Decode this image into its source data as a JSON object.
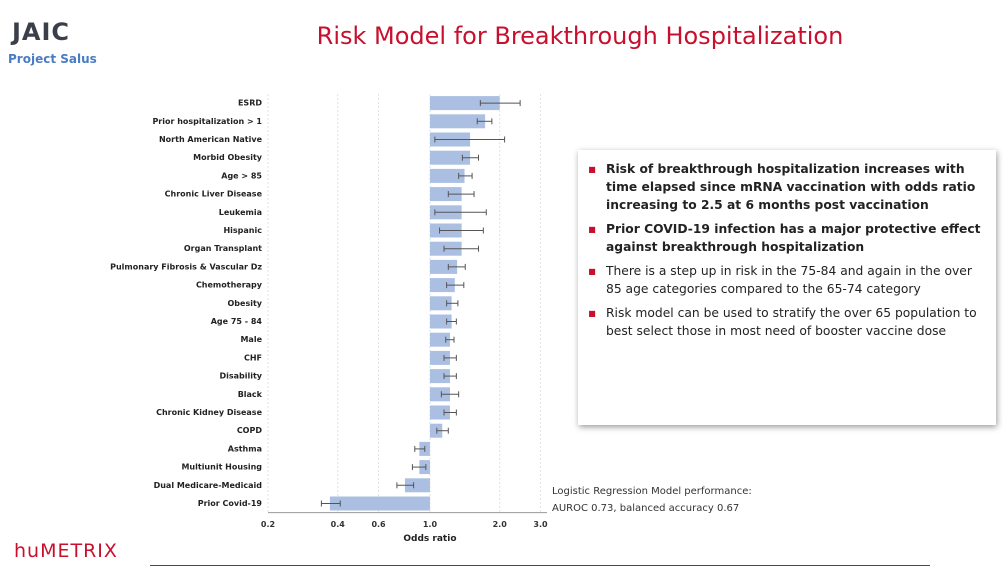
{
  "header": {
    "logo": "JAIC",
    "project": "Project Salus",
    "title": "Risk Model for Breakthrough Hospitalization"
  },
  "chart_data": {
    "type": "bar",
    "orientation": "horizontal",
    "log_scale": true,
    "grid": true,
    "color": "#aabfe2",
    "error_color": "#555555",
    "xlabel": "Odds ratio",
    "categories": [
      "ESRD",
      "Prior hospitalization > 1",
      "North American Native",
      "Morbid Obesity",
      "Age > 85",
      "Chronic Liver Disease",
      "Leukemia",
      "Hispanic",
      "Organ Transplant",
      "Pulmonary Fibrosis & Vascular Dz",
      "Chemotherapy",
      "Obesity",
      "Age 75 - 84",
      "Male",
      "CHF",
      "Disability",
      "Black",
      "Chronic Kidney Disease",
      "COPD",
      "Asthma",
      "Multiunit Housing",
      "Dual Medicare-Medicaid",
      "Prior Covid-19"
    ],
    "values": [
      2.0,
      1.73,
      1.49,
      1.49,
      1.41,
      1.37,
      1.37,
      1.37,
      1.37,
      1.31,
      1.28,
      1.24,
      1.24,
      1.22,
      1.22,
      1.22,
      1.22,
      1.22,
      1.13,
      0.9,
      0.9,
      0.78,
      0.37
    ],
    "ci_low": [
      1.65,
      1.6,
      1.05,
      1.38,
      1.33,
      1.2,
      1.05,
      1.1,
      1.15,
      1.2,
      1.18,
      1.18,
      1.18,
      1.17,
      1.15,
      1.15,
      1.12,
      1.15,
      1.07,
      0.86,
      0.84,
      0.72,
      0.34
    ],
    "ci_high": [
      2.45,
      1.85,
      2.1,
      1.62,
      1.52,
      1.55,
      1.75,
      1.7,
      1.62,
      1.42,
      1.4,
      1.32,
      1.3,
      1.27,
      1.3,
      1.3,
      1.33,
      1.3,
      1.2,
      0.95,
      0.96,
      0.85,
      0.41
    ],
    "xlim": [
      0.2,
      3.2
    ],
    "xticks": [
      0.2,
      0.4,
      0.6,
      {
        "value": 1,
        "label": "1.0"
      },
      {
        "value": 2,
        "label": "2.0"
      },
      {
        "value": 3,
        "label": "3.0"
      }
    ]
  },
  "bullets": [
    "Risk of breakthrough hospitalization increases with time elapsed since mRNA vaccination with odds ratio increasing to 2.5 at 6 months post vaccination",
    "Prior COVID-19 infection has a major protective effect against breakthrough hospitalization",
    "There is a step up in risk in the 75-84 and again in the over 85 age categories compared to the 65-74 category",
    "Risk model can be used to stratify the over 65 population to best select those in most need of booster vaccine dose"
  ],
  "performance": [
    "Logistic Regression Model performance:",
    "AUROC 0.73, balanced accuracy 0.67"
  ],
  "footer": {
    "logo": "huMETRIX"
  }
}
